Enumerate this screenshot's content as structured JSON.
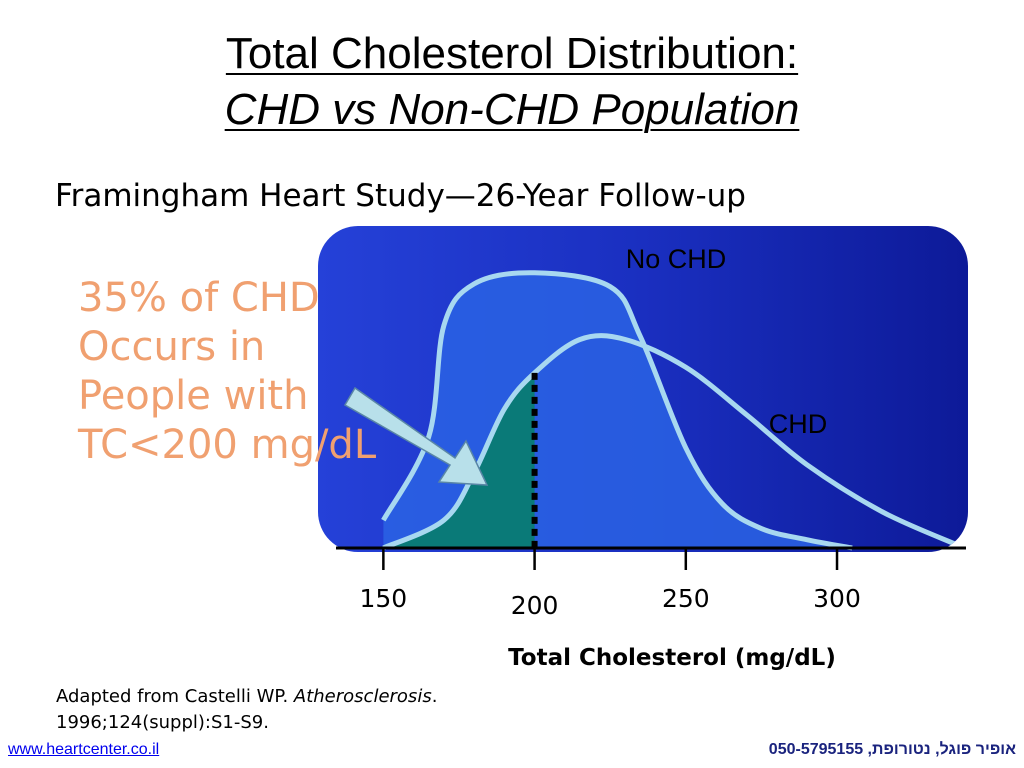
{
  "title_line1": "Total Cholesterol Distribution: ",
  "title_line2": "CHD vs Non-CHD Population",
  "subtitle": "Framingham Heart Study—26-Year Follow-up",
  "callout": "35% of CHD\nOccurs in\nPeople with\nTC<200 mg/dL",
  "source": {
    "prefix": "Adapted from Castelli WP. ",
    "journal": "Atherosclerosis",
    "suffix": ".",
    "line2": "1996;124(suppl):S1-S9."
  },
  "footer": {
    "website": "www.heartcenter.co.il",
    "contact": "אופיר פוגל, נטורופת, 050-5795155"
  },
  "colors": {
    "panel": "#1f36c9",
    "curve": "#a8d8f0",
    "shaded": "#0a7a78",
    "callout_text": "#f0a070",
    "arrow": "#b8e0ea"
  },
  "chart_data": {
    "type": "area",
    "title": "",
    "xlabel": "Total Cholesterol (mg/dL)",
    "ylabel": "",
    "xlim": [
      135,
      340
    ],
    "ylim": [
      0,
      1
    ],
    "x_ticks": [
      150,
      200,
      250,
      300
    ],
    "threshold": 200,
    "grid": false,
    "series": [
      {
        "name": "No CHD",
        "points": [
          [
            150,
            0.1
          ],
          [
            165,
            0.4
          ],
          [
            170,
            0.8
          ],
          [
            180,
            0.95
          ],
          [
            200,
            0.99
          ],
          [
            225,
            0.94
          ],
          [
            235,
            0.76
          ],
          [
            250,
            0.36
          ],
          [
            262,
            0.16
          ],
          [
            275,
            0.07
          ],
          [
            290,
            0.03
          ],
          [
            305,
            0.0
          ]
        ]
      },
      {
        "name": "CHD",
        "points": [
          [
            150,
            0.0
          ],
          [
            170,
            0.1
          ],
          [
            180,
            0.27
          ],
          [
            190,
            0.5
          ],
          [
            200,
            0.63
          ],
          [
            215,
            0.75
          ],
          [
            230,
            0.75
          ],
          [
            250,
            0.65
          ],
          [
            270,
            0.48
          ],
          [
            290,
            0.3
          ],
          [
            315,
            0.13
          ],
          [
            340,
            0.01
          ]
        ]
      }
    ],
    "shaded_region": {
      "series": "CHD",
      "to": 200,
      "label": "35% of CHD Occurs in People with TC<200 mg/dL"
    }
  }
}
